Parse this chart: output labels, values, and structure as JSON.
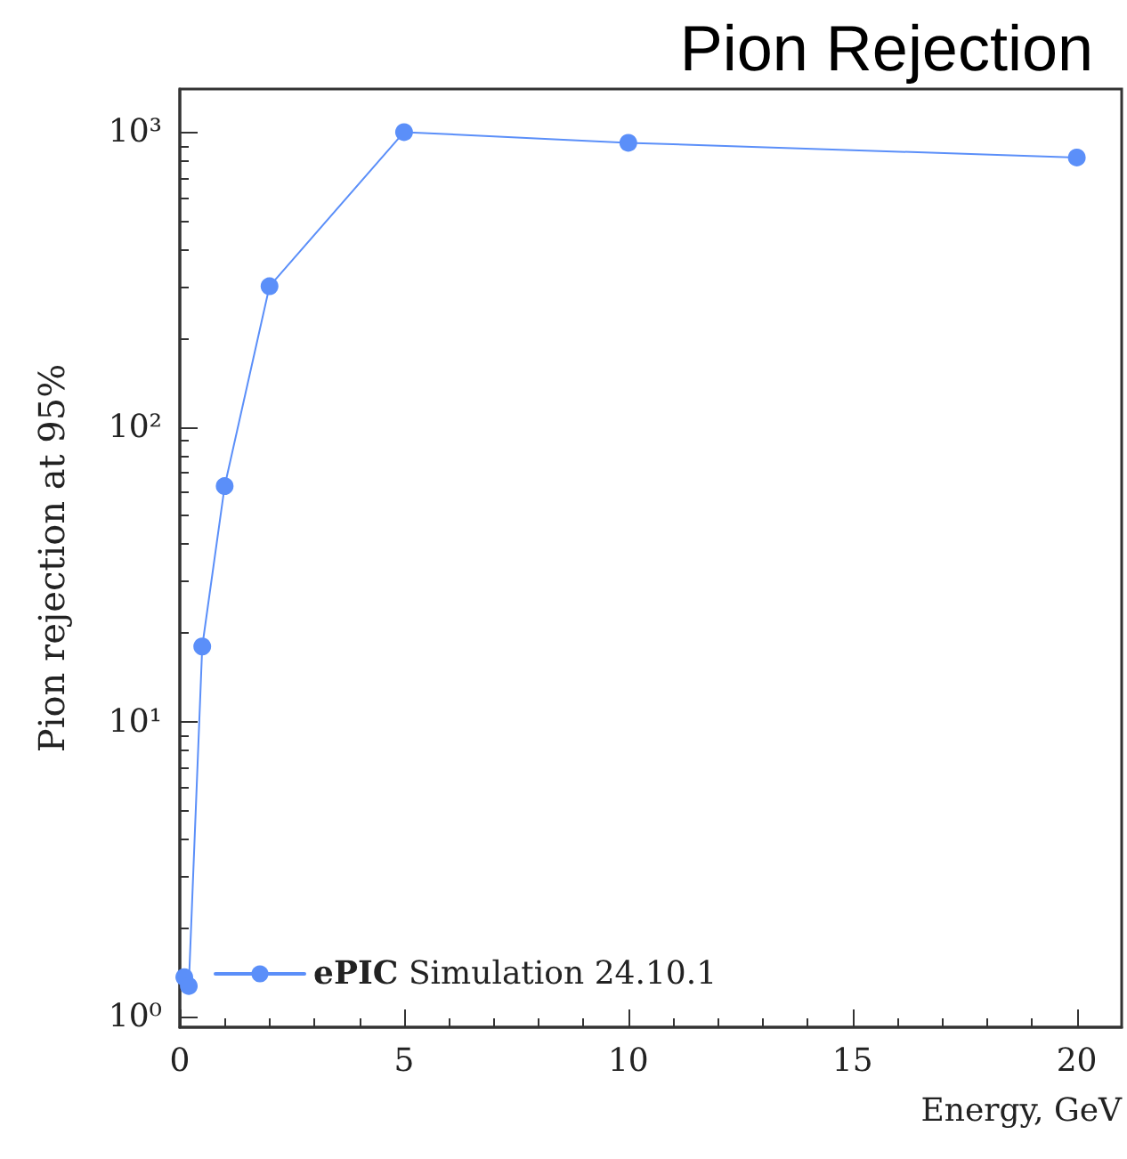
{
  "chart_data": {
    "type": "line",
    "title": "Pion Rejection",
    "xlabel": "Energy, GeV",
    "ylabel": "Pion rejection at 95%",
    "series": [
      {
        "name": "ePIC Simulation 24.10.1",
        "color": "#5b8ff9",
        "x": [
          0.1,
          0.2,
          0.5,
          1,
          2,
          5,
          10,
          20
        ],
        "values": [
          1.36,
          1.27,
          18,
          63,
          300,
          1000,
          920,
          820
        ]
      }
    ],
    "xlim": [
      0,
      21
    ],
    "xticks": [
      0,
      5,
      10,
      15,
      20
    ],
    "ylim": [
      0.92,
      1400
    ],
    "yticks": [
      {
        "value": 1,
        "label": "10⁰"
      },
      {
        "value": 10,
        "label": "10¹"
      },
      {
        "value": 100,
        "label": "10²"
      },
      {
        "value": 1000,
        "label": "10³"
      }
    ],
    "log": "y",
    "grid": false,
    "legend": "bottom left",
    "marker": "circle",
    "line_style": "solid"
  }
}
